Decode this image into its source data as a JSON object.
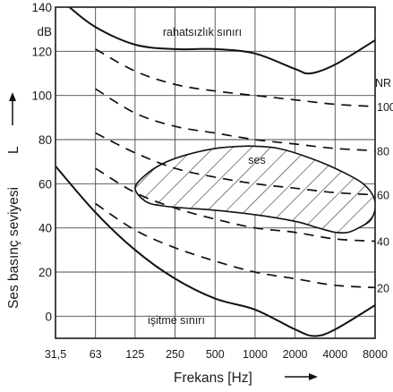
{
  "chart_data": {
    "type": "line",
    "ylabel": "Ses basınç seviyesi",
    "ylabel_symbol": "L",
    "yunit": "dB",
    "xlabel": "Frekans [Hz]",
    "x_scale": "log2",
    "x_ticks": [
      "31,5",
      "63",
      "125",
      "250",
      "500",
      "1000",
      "2000",
      "4000",
      "8000"
    ],
    "x_tick_values": [
      31.5,
      63,
      125,
      250,
      500,
      1000,
      2000,
      4000,
      8000
    ],
    "y_ticks": [
      0,
      20,
      40,
      60,
      80,
      100,
      120,
      140
    ],
    "y_tick_labels": [
      "0",
      "20",
      "40",
      "60",
      "80",
      "100",
      "120",
      "140"
    ],
    "ylim": [
      -10,
      140
    ],
    "xlim": [
      31.5,
      8000
    ],
    "grid": true,
    "nr_title": "NR",
    "nr_curves": [
      {
        "label": "20",
        "x": [
          63,
          125,
          250,
          500,
          1000,
          2000,
          4000,
          8000
        ],
        "y": [
          51,
          39,
          31,
          25,
          20,
          17,
          14,
          13
        ]
      },
      {
        "label": "40",
        "x": [
          63,
          125,
          250,
          500,
          1000,
          2000,
          4000,
          8000
        ],
        "y": [
          67,
          56,
          49,
          44,
          40,
          38,
          35,
          34
        ]
      },
      {
        "label": "60",
        "x": [
          63,
          125,
          250,
          500,
          1000,
          2000,
          4000,
          8000
        ],
        "y": [
          83,
          74,
          67,
          63,
          60,
          58,
          56,
          55
        ]
      },
      {
        "label": "80",
        "x": [
          63,
          125,
          250,
          500,
          1000,
          2000,
          4000,
          8000
        ],
        "y": [
          103,
          92,
          86,
          83,
          80,
          78,
          76,
          75
        ]
      },
      {
        "label": "100",
        "x": [
          63,
          125,
          250,
          500,
          1000,
          2000,
          4000,
          8000
        ],
        "y": [
          121,
          111,
          105,
          102,
          100,
          98,
          96,
          95
        ]
      }
    ],
    "threshold_curves": [
      {
        "label": "rahatsızlık sınırı",
        "x": [
          40,
          63,
          125,
          250,
          500,
          1000,
          2000,
          2600,
          4000,
          8000
        ],
        "y": [
          140,
          131,
          123,
          121,
          121,
          119,
          112,
          110,
          114,
          125
        ]
      },
      {
        "label": "işitme sınırı",
        "x": [
          31.5,
          63,
          125,
          250,
          500,
          1000,
          2000,
          2800,
          4000,
          8000
        ],
        "y": [
          68,
          47,
          30,
          17,
          8,
          3,
          -6,
          -9,
          -6,
          5
        ]
      }
    ],
    "region": {
      "label": "ses",
      "boundary": {
        "x": [
          125,
          150,
          200,
          300,
          500,
          800,
          1000,
          1500,
          2500,
          4000,
          6500,
          8000,
          7500,
          6000,
          5000,
          4000,
          3000,
          2000,
          1000,
          500,
          300,
          200,
          150,
          125
        ],
        "y": [
          58,
          64,
          69,
          73,
          76,
          77,
          77,
          76,
          72,
          67,
          60,
          52,
          44,
          40,
          38,
          38,
          40,
          43,
          46,
          48,
          49,
          50,
          52,
          58
        ]
      }
    }
  }
}
